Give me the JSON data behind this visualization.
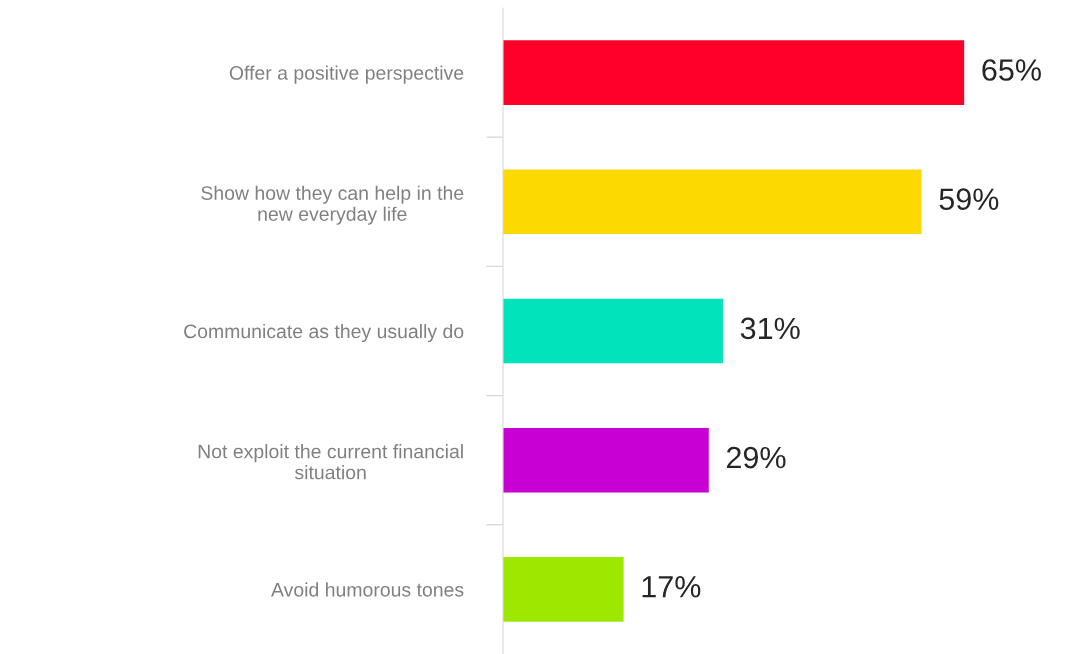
{
  "chart_data": {
    "type": "bar",
    "orientation": "horizontal",
    "categories": [
      "Offer a positive perspective",
      "Show how they can help in the\nnew everyday life",
      "Communicate as they usually do",
      "Not exploit the current financial\nsituation",
      "Avoid humorous tones"
    ],
    "values": [
      65,
      59,
      31,
      29,
      17
    ],
    "colors": [
      "#ff0029",
      "#fcd900",
      "#00e3bb",
      "#c800d4",
      "#9ee800"
    ],
    "value_labels": [
      "65%",
      "59%",
      "31%",
      "29%",
      "17%"
    ]
  }
}
